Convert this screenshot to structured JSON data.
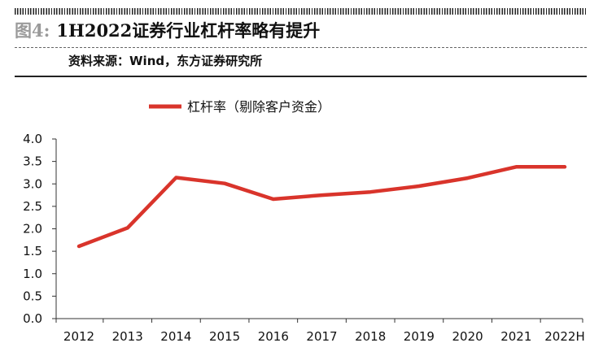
{
  "figure": {
    "label": "图4:",
    "title": "1H2022证券行业杠杆率略有提升",
    "source": "资料来源：Wind，东方证券研究所"
  },
  "chart_data": {
    "type": "line",
    "categories": [
      "2012",
      "2013",
      "2014",
      "2015",
      "2016",
      "2017",
      "2018",
      "2019",
      "2020",
      "2021",
      "2022H"
    ],
    "series": [
      {
        "name": "杠杆率（剔除客户资金）",
        "values": [
          1.61,
          2.02,
          3.14,
          3.01,
          2.66,
          2.75,
          2.82,
          2.95,
          3.13,
          3.38,
          3.38
        ],
        "color": "#d9342b"
      }
    ],
    "ylim": [
      0,
      4.0
    ],
    "yticks": [
      "0.0",
      "0.5",
      "1.0",
      "1.5",
      "2.0",
      "2.5",
      "3.0",
      "3.5",
      "4.0"
    ],
    "legend_position": "top-left",
    "grid": false
  }
}
